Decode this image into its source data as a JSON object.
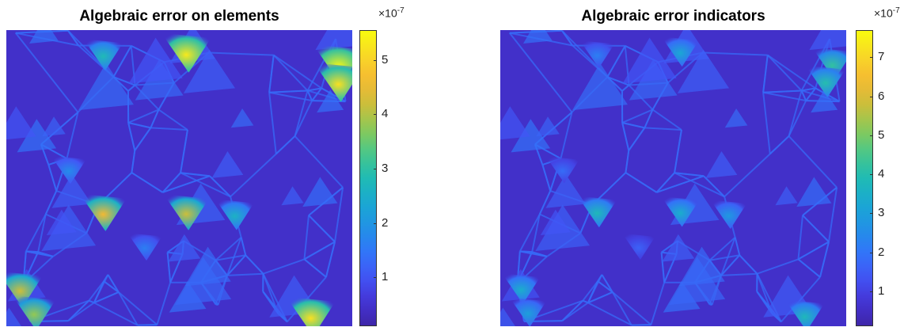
{
  "chart_data": [
    {
      "type": "heatmap",
      "title": "Algebraic error on elements",
      "colormap": "parula",
      "colorbar": {
        "min": 0.1,
        "max": 5.55,
        "ticks": [
          1,
          2,
          3,
          4,
          5
        ],
        "tick_labels": [
          "1",
          "2",
          "3",
          "4",
          "5"
        ],
        "exponent_label": "×10",
        "exponent_power": "-7"
      },
      "hotspots": [
        {
          "x": 0.52,
          "y": 0.94,
          "value": 5.3
        },
        {
          "x": 0.96,
          "y": 0.9,
          "value": 5.5
        },
        {
          "x": 0.96,
          "y": 0.84,
          "value": 5.2
        },
        {
          "x": 0.28,
          "y": 0.93,
          "value": 2.8
        },
        {
          "x": 0.28,
          "y": 0.4,
          "value": 4.6
        },
        {
          "x": 0.52,
          "y": 0.4,
          "value": 4.2
        },
        {
          "x": 0.66,
          "y": 0.39,
          "value": 2.6
        },
        {
          "x": 0.04,
          "y": 0.14,
          "value": 4.2
        },
        {
          "x": 0.08,
          "y": 0.06,
          "value": 3.8
        },
        {
          "x": 0.88,
          "y": 0.05,
          "value": 5.2
        },
        {
          "x": 0.18,
          "y": 0.54,
          "value": 1.8
        },
        {
          "x": 0.4,
          "y": 0.28,
          "value": 1.6
        }
      ]
    },
    {
      "type": "heatmap",
      "title": "Algebraic error indicators",
      "colormap": "parula",
      "colorbar": {
        "min": 0.1,
        "max": 7.7,
        "ticks": [
          1,
          2,
          3,
          4,
          5,
          6,
          7
        ],
        "tick_labels": [
          "1",
          "2",
          "3",
          "4",
          "5",
          "6",
          "7"
        ],
        "exponent_label": "×10",
        "exponent_power": "-7"
      },
      "hotspots": [
        {
          "x": 0.52,
          "y": 0.94,
          "value": 3.2
        },
        {
          "x": 0.96,
          "y": 0.9,
          "value": 4.2
        },
        {
          "x": 0.94,
          "y": 0.84,
          "value": 4.0
        },
        {
          "x": 0.28,
          "y": 0.93,
          "value": 2.2
        },
        {
          "x": 0.28,
          "y": 0.4,
          "value": 3.8
        },
        {
          "x": 0.52,
          "y": 0.4,
          "value": 3.4
        },
        {
          "x": 0.66,
          "y": 0.39,
          "value": 2.8
        },
        {
          "x": 0.06,
          "y": 0.14,
          "value": 3.4
        },
        {
          "x": 0.08,
          "y": 0.06,
          "value": 3.0
        },
        {
          "x": 0.88,
          "y": 0.05,
          "value": 3.8
        },
        {
          "x": 0.18,
          "y": 0.54,
          "value": 1.8
        },
        {
          "x": 0.4,
          "y": 0.28,
          "value": 1.6
        }
      ]
    }
  ]
}
